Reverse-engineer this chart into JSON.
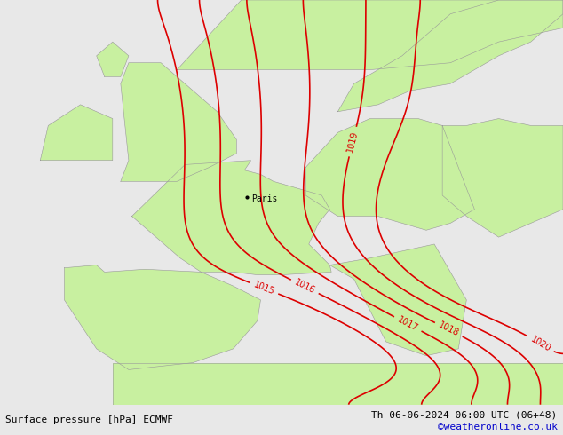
{
  "title_left": "Surface pressure [hPa] ECMWF",
  "title_right": "Th 06-06-2024 06:00 UTC (06+48)",
  "watermark": "©weatheronline.co.uk",
  "sea_color": "#e8e8e8",
  "land_color": "#c8f0a0",
  "border_color": "#999999",
  "contour_color": "#dd0000",
  "bottom_bar_color": "#ffffff",
  "text_color": "#000000",
  "watermark_color": "#0000cc",
  "figsize": [
    6.34,
    4.9
  ],
  "dpi": 100,
  "xlim": [
    -13,
    22
  ],
  "ylim": [
    34,
    63
  ],
  "paris_lon": 2.35,
  "paris_lat": 48.85,
  "isobar_levels": [
    1015,
    1016,
    1017,
    1018,
    1019,
    1020
  ],
  "label_fontsize": 7
}
